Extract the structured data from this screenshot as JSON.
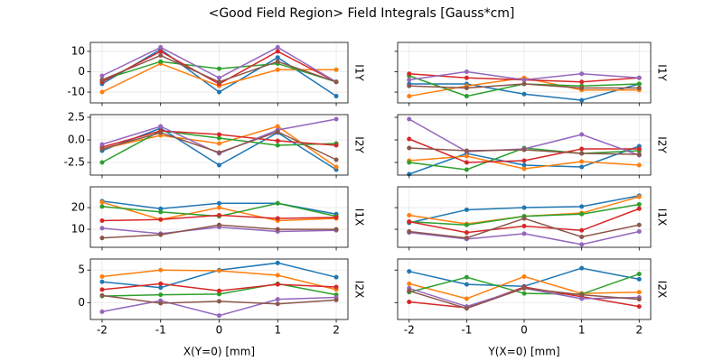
{
  "title": "<Good Field Region> Field Integrals [Gauss*cm]",
  "chart_data": [
    {
      "type": "line",
      "ylabel": "I1Y",
      "x": [
        -2,
        -1,
        0,
        1,
        2
      ],
      "xlim": [
        -2.2,
        2.2
      ],
      "xticks": [
        -2,
        -1,
        0,
        1,
        2
      ],
      "xtick_labels": false,
      "ylim": [
        -15.3,
        14.4
      ],
      "yticks": [
        -10,
        0,
        10
      ],
      "ytick_labels": true,
      "grid": true,
      "series": [
        {
          "color": "#1f77b4",
          "values": [
            -6,
            11,
            -10,
            7,
            -12
          ]
        },
        {
          "color": "#ff7f0e",
          "values": [
            -10,
            4,
            -7,
            1,
            1
          ]
        },
        {
          "color": "#2ca02c",
          "values": [
            -4,
            5,
            1.5,
            4,
            -5
          ]
        },
        {
          "color": "#d62728",
          "values": [
            -5,
            10,
            -6,
            10,
            -5
          ]
        },
        {
          "color": "#9467bd",
          "values": [
            -2,
            12,
            -3,
            12,
            -5
          ]
        },
        {
          "color": "#8c564b",
          "values": [
            -4,
            8,
            -5,
            5,
            -5
          ]
        }
      ]
    },
    {
      "type": "line",
      "ylabel": "I1Y",
      "x": [
        -2,
        -1,
        0,
        1,
        2
      ],
      "xlim": [
        -2.2,
        2.2
      ],
      "xticks": [
        -2,
        -1,
        0,
        1,
        2
      ],
      "xtick_labels": false,
      "ylim": [
        -15.3,
        14.4
      ],
      "yticks": [
        -10,
        0,
        10
      ],
      "ytick_labels": false,
      "grid": true,
      "series": [
        {
          "color": "#1f77b4",
          "values": [
            -6,
            -6,
            -11,
            -14,
            -6
          ]
        },
        {
          "color": "#ff7f0e",
          "values": [
            -12,
            -7,
            -3,
            -9,
            -9
          ]
        },
        {
          "color": "#2ca02c",
          "values": [
            -2,
            -12,
            -6,
            -7,
            -6
          ]
        },
        {
          "color": "#d62728",
          "values": [
            -1,
            -3,
            -4,
            -5,
            -3
          ]
        },
        {
          "color": "#9467bd",
          "values": [
            -4,
            0,
            -4,
            -1,
            -3
          ]
        },
        {
          "color": "#8c564b",
          "values": [
            -7,
            -8,
            -6,
            -8,
            -8
          ]
        }
      ]
    },
    {
      "type": "line",
      "ylabel": "I2Y",
      "x": [
        -2,
        -1,
        0,
        1,
        2
      ],
      "xlim": [
        -2.2,
        2.2
      ],
      "xticks": [
        -2,
        -1,
        0,
        1,
        2
      ],
      "xtick_labels": false,
      "ylim": [
        -3.9,
        2.8
      ],
      "yticks": [
        -2.5,
        {
          "value": 0,
          "label": "0.0"
        },
        2.5
      ],
      "ytick_labels": true,
      "grid": true,
      "series": [
        {
          "color": "#1f77b4",
          "values": [
            -1.2,
            1.3,
            -2.8,
            0.8,
            -3.3
          ]
        },
        {
          "color": "#ff7f0e",
          "values": [
            -1.0,
            0.5,
            -0.4,
            1.5,
            -3.0
          ]
        },
        {
          "color": "#2ca02c",
          "values": [
            -2.5,
            1.0,
            0.2,
            -0.6,
            -0.4
          ]
        },
        {
          "color": "#d62728",
          "values": [
            -0.8,
            1.0,
            0.6,
            -0.1,
            -0.6
          ]
        },
        {
          "color": "#9467bd",
          "values": [
            -0.5,
            1.5,
            -1.5,
            1.1,
            2.3
          ]
        },
        {
          "color": "#8c564b",
          "values": [
            -1.0,
            0.8,
            -1.4,
            0.9,
            -2.2
          ]
        }
      ]
    },
    {
      "type": "line",
      "ylabel": "I2Y",
      "x": [
        -2,
        -1,
        0,
        1,
        2
      ],
      "xlim": [
        -2.2,
        2.2
      ],
      "xticks": [
        -2,
        -1,
        0,
        1,
        2
      ],
      "xtick_labels": false,
      "ylim": [
        -3.9,
        2.8
      ],
      "yticks": [
        -2.5,
        0,
        2.5
      ],
      "ytick_labels": false,
      "grid": true,
      "series": [
        {
          "color": "#1f77b4",
          "values": [
            -3.8,
            -1.5,
            -2.8,
            -3.0,
            -0.7
          ]
        },
        {
          "color": "#ff7f0e",
          "values": [
            -2.3,
            -1.8,
            -3.2,
            -2.4,
            -2.8
          ]
        },
        {
          "color": "#2ca02c",
          "values": [
            -2.5,
            -3.3,
            -0.9,
            -1.5,
            -1.2
          ]
        },
        {
          "color": "#d62728",
          "values": [
            0.1,
            -2.5,
            -2.3,
            -1.0,
            -1.0
          ]
        },
        {
          "color": "#9467bd",
          "values": [
            2.3,
            -1.3,
            -1.0,
            0.6,
            -1.7
          ]
        },
        {
          "color": "#8c564b",
          "values": [
            -0.9,
            -1.2,
            -1.1,
            -1.5,
            -1.6
          ]
        }
      ]
    },
    {
      "type": "line",
      "ylabel": "I1X",
      "x": [
        -2,
        -1,
        0,
        1,
        2
      ],
      "xlim": [
        -2.2,
        2.2
      ],
      "xticks": [
        -2,
        -1,
        0,
        1,
        2
      ],
      "xtick_labels": false,
      "ylim": [
        1.7,
        29.6
      ],
      "yticks": [
        10,
        20
      ],
      "ytick_labels": true,
      "grid": true,
      "series": [
        {
          "color": "#1f77b4",
          "values": [
            23,
            19.5,
            22,
            22,
            17
          ]
        },
        {
          "color": "#ff7f0e",
          "values": [
            22.5,
            14.5,
            20,
            14,
            15
          ]
        },
        {
          "color": "#2ca02c",
          "values": [
            20.5,
            18,
            16,
            22,
            16
          ]
        },
        {
          "color": "#d62728",
          "values": [
            14,
            14.5,
            16.5,
            15,
            15.5
          ]
        },
        {
          "color": "#9467bd",
          "values": [
            10.5,
            8,
            11,
            9,
            9.5
          ]
        },
        {
          "color": "#8c564b",
          "values": [
            6,
            7.5,
            12,
            10,
            10
          ]
        }
      ]
    },
    {
      "type": "line",
      "ylabel": "I1X",
      "x": [
        -2,
        -1,
        0,
        1,
        2
      ],
      "xlim": [
        -2.2,
        2.2
      ],
      "xticks": [
        -2,
        -1,
        0,
        1,
        2
      ],
      "xtick_labels": false,
      "ylim": [
        1.7,
        29.6
      ],
      "yticks": [
        10,
        20
      ],
      "ytick_labels": false,
      "grid": true,
      "series": [
        {
          "color": "#1f77b4",
          "values": [
            13,
            19,
            20,
            20.5,
            25.5
          ]
        },
        {
          "color": "#ff7f0e",
          "values": [
            16.5,
            12.5,
            16,
            17.5,
            25
          ]
        },
        {
          "color": "#2ca02c",
          "values": [
            13.5,
            12,
            16,
            17,
            21.5
          ]
        },
        {
          "color": "#d62728",
          "values": [
            13.5,
            8.5,
            11.5,
            9.5,
            19.5
          ]
        },
        {
          "color": "#9467bd",
          "values": [
            8.5,
            5.5,
            8,
            3,
            9
          ]
        },
        {
          "color": "#8c564b",
          "values": [
            9,
            6,
            15,
            6.5,
            12
          ]
        }
      ]
    },
    {
      "type": "line",
      "ylabel": "I2X",
      "xlabel": "X(Y=0) [mm]",
      "x": [
        -2,
        -1,
        0,
        1,
        2
      ],
      "xlim": [
        -2.2,
        2.2
      ],
      "xticks": [
        -2,
        -1,
        0,
        1,
        2
      ],
      "xtick_labels": true,
      "ylim": [
        -2.6,
        6.7
      ],
      "yticks": [
        0,
        5
      ],
      "ytick_labels": true,
      "grid": true,
      "series": [
        {
          "color": "#1f77b4",
          "values": [
            3.2,
            2.3,
            5.0,
            6.1,
            3.9
          ]
        },
        {
          "color": "#ff7f0e",
          "values": [
            4.0,
            5.0,
            4.9,
            4.2,
            2.0
          ]
        },
        {
          "color": "#2ca02c",
          "values": [
            1.0,
            1.2,
            1.3,
            2.9,
            1.2
          ]
        },
        {
          "color": "#d62728",
          "values": [
            2.0,
            2.9,
            1.8,
            2.8,
            2.4
          ]
        },
        {
          "color": "#9467bd",
          "values": [
            -1.4,
            0.3,
            -2.0,
            0.5,
            0.8
          ]
        },
        {
          "color": "#8c564b",
          "values": [
            1.1,
            -0.1,
            0.2,
            -0.2,
            0.4
          ]
        }
      ]
    },
    {
      "type": "line",
      "ylabel": "I2X",
      "xlabel": "Y(X=0) [mm]",
      "x": [
        -2,
        -1,
        0,
        1,
        2
      ],
      "xlim": [
        -2.2,
        2.2
      ],
      "xticks": [
        -2,
        -1,
        0,
        1,
        2
      ],
      "xtick_labels": true,
      "ylim": [
        -2.6,
        6.7
      ],
      "yticks": [
        0,
        5
      ],
      "ytick_labels": false,
      "grid": true,
      "series": [
        {
          "color": "#1f77b4",
          "values": [
            4.8,
            2.8,
            2.5,
            5.3,
            3.6
          ]
        },
        {
          "color": "#ff7f0e",
          "values": [
            2.9,
            0.6,
            4.0,
            1.4,
            1.6
          ]
        },
        {
          "color": "#2ca02c",
          "values": [
            1.6,
            3.9,
            1.4,
            1.3,
            4.4
          ]
        },
        {
          "color": "#d62728",
          "values": [
            0.1,
            -0.8,
            2.4,
            0.9,
            -0.6
          ]
        },
        {
          "color": "#9467bd",
          "values": [
            2.2,
            -0.6,
            2.2,
            0.6,
            0.8
          ]
        },
        {
          "color": "#8c564b",
          "values": [
            1.8,
            -0.9,
            2.2,
            1.2,
            0.5
          ]
        }
      ]
    }
  ]
}
